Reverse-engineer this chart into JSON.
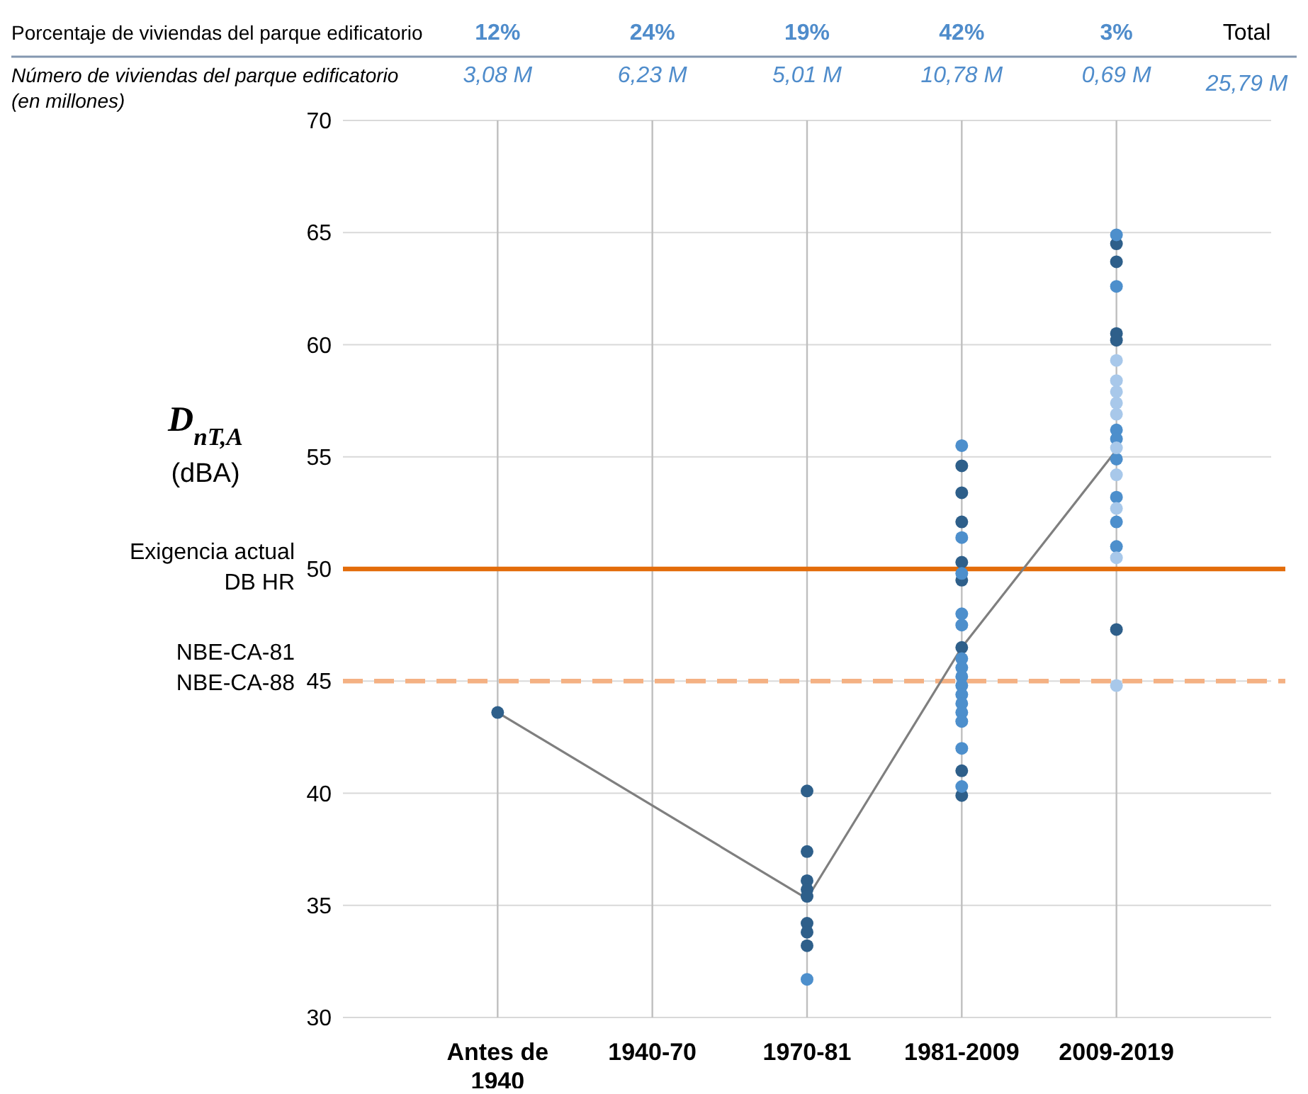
{
  "chart_data": {
    "type": "scatter",
    "ylabel": "D$_{nT,A}$\n(dBA)",
    "categories": [
      "Antes de\n1940",
      "1940-70",
      "1970-81",
      "1981-2009",
      "2009-2019"
    ],
    "ylim": [
      30,
      70
    ],
    "yticks": [
      30,
      35,
      40,
      45,
      50,
      55,
      60,
      65,
      70
    ],
    "grid": true,
    "marker": "circle",
    "series": [
      {
        "type": "line",
        "color": "#7f7f7f",
        "marker": "none",
        "x": [
          "Antes de\n1940",
          "1970-81",
          "1981-2009",
          "2009-2019"
        ],
        "values": [
          43.6,
          35.3,
          46.5,
          55.3
        ]
      },
      {
        "color": "#2e5f8a",
        "x": [
          "Antes de\n1940",
          "1970-81",
          "1970-81",
          "1970-81",
          "1970-81",
          "1970-81",
          "1970-81",
          "1970-81",
          "1970-81",
          "1981-2009",
          "1981-2009",
          "1981-2009",
          "1981-2009",
          "1981-2009",
          "1981-2009",
          "1981-2009",
          "1981-2009",
          "2009-2019",
          "2009-2019",
          "2009-2019",
          "2009-2019",
          "2009-2019"
        ],
        "values": [
          43.6,
          40.1,
          37.4,
          36.1,
          35.7,
          35.4,
          34.2,
          33.8,
          33.2,
          54.6,
          53.4,
          52.1,
          50.3,
          49.5,
          46.5,
          41.0,
          39.9,
          64.5,
          63.7,
          60.5,
          60.2,
          47.3
        ]
      },
      {
        "color": "#4d8fcc",
        "x": [
          "1970-81",
          "1981-2009",
          "1981-2009",
          "1981-2009",
          "1981-2009",
          "1981-2009",
          "1981-2009",
          "1981-2009",
          "1981-2009",
          "1981-2009",
          "1981-2009",
          "1981-2009",
          "1981-2009",
          "1981-2009",
          "1981-2009",
          "1981-2009",
          "2009-2019",
          "2009-2019",
          "2009-2019",
          "2009-2019",
          "2009-2019",
          "2009-2019",
          "2009-2019",
          "2009-2019"
        ],
        "values": [
          31.7,
          55.5,
          51.4,
          49.8,
          48.0,
          47.5,
          46.0,
          45.6,
          45.2,
          44.8,
          44.4,
          44.0,
          43.6,
          43.2,
          42.0,
          40.3,
          64.9,
          62.6,
          56.2,
          55.8,
          54.9,
          53.2,
          52.1,
          51.0
        ]
      },
      {
        "color": "#a8c8ea",
        "x": [
          "2009-2019",
          "2009-2019",
          "2009-2019",
          "2009-2019",
          "2009-2019",
          "2009-2019",
          "2009-2019",
          "2009-2019",
          "2009-2019"
        ],
        "values": [
          59.3,
          58.4,
          57.9,
          57.4,
          56.9,
          55.4,
          54.2,
          52.7,
          50.5
        ]
      },
      {
        "color": "#a8c8ea",
        "x": [
          "2009-2019"
        ],
        "values": [
          44.8
        ]
      }
    ],
    "ref_lines": [
      {
        "axis": "y",
        "value": 50,
        "label": "Exigencia actual\nDB HR",
        "color": "#e36c0a",
        "line_style": "solid"
      },
      {
        "axis": "y",
        "value": 45,
        "label": "NBE-CA-81\nNBE-CA-88",
        "color": "#f4b183",
        "line_style": "dashed"
      }
    ],
    "annotations": [
      "Porcentaje de viviendas del parque edificatorio",
      "12%",
      "24%",
      "19%",
      "42%",
      "3%",
      "Total",
      "Número de viviendas del parque edificatorio\n(en millones)",
      "3,08 M",
      "6,23 M",
      "5,01 M",
      "10,78 M",
      "0,69 M",
      "25,79 M"
    ]
  }
}
